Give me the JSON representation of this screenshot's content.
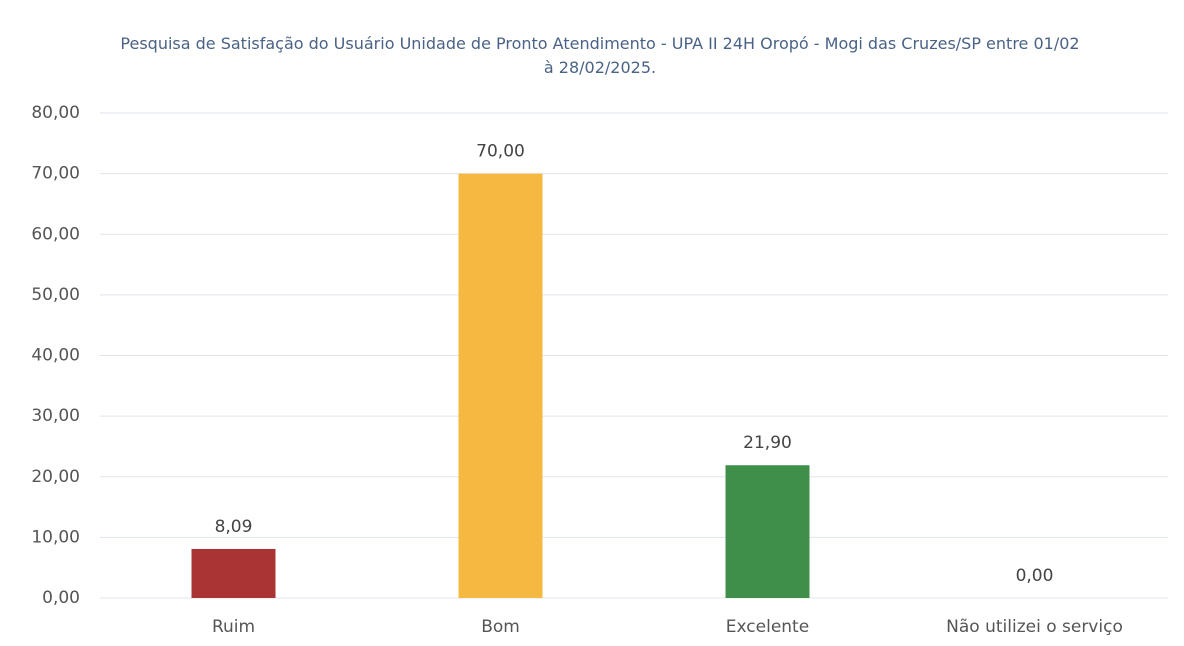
{
  "chart_data": {
    "type": "bar",
    "title": "Pesquisa de Satisfação do Usuário Unidade de Pronto Atendimento - UPA II 24H  Oropó - Mogi das Cruzes/SP entre 01/02 à 28/02/2025.",
    "categories": [
      "Ruim",
      "Bom",
      "Excelente",
      "Não utilizei o serviço"
    ],
    "values": [
      8.09,
      70,
      21.9,
      0
    ],
    "value_labels": [
      "8,09",
      "70,00",
      "21,90",
      "0,00"
    ],
    "colors": [
      "#a93433",
      "#f5b942",
      "#3f8f4b",
      "#7f7f7f"
    ],
    "ylim": [
      0,
      80
    ],
    "yticks": [
      {
        "value": 0,
        "label": "0,00"
      },
      {
        "value": 10,
        "label": "10,00"
      },
      {
        "value": 20,
        "label": "20,00"
      },
      {
        "value": 30,
        "label": "30,00"
      },
      {
        "value": 40,
        "label": "40,00"
      },
      {
        "value": 50,
        "label": "50,00"
      },
      {
        "value": 60,
        "label": "60,00"
      },
      {
        "value": 70,
        "label": "70,00"
      },
      {
        "value": 80,
        "label": "80,00"
      }
    ],
    "grid": true
  }
}
